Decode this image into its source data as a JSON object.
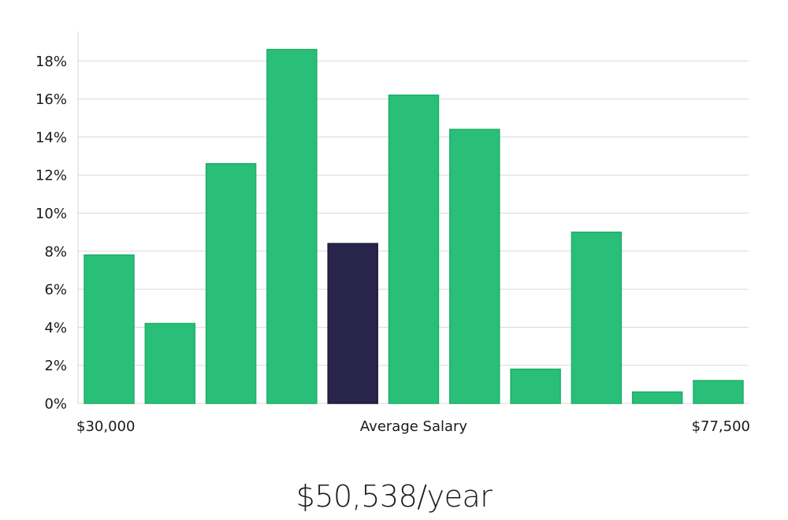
{
  "chart_data": {
    "type": "bar",
    "x_start_label": "$30,000",
    "x_end_label": "$77,500",
    "xlabel": "Average Salary",
    "y_tick_labels": [
      "0%",
      "2%",
      "4%",
      "6%",
      "8%",
      "10%",
      "12%",
      "14%",
      "16%",
      "18%"
    ],
    "y_ticks": [
      0,
      2,
      4,
      6,
      8,
      10,
      12,
      14,
      16,
      18
    ],
    "ylim": [
      0,
      19.5
    ],
    "grid": true,
    "values": [
      7.8,
      4.2,
      12.6,
      18.6,
      8.4,
      16.2,
      14.4,
      1.8,
      9.0,
      0.6,
      1.2
    ],
    "highlight_index": 4,
    "colors": {
      "bar": "#2abf78",
      "bar_edge": "#1fae6a",
      "highlight": "#29254a",
      "highlight_edge": "#1c1938"
    }
  },
  "average_salary": "$50,538/year"
}
